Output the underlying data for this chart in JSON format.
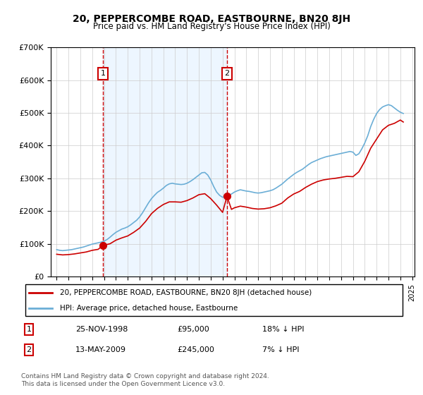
{
  "title": "20, PEPPERCOMBE ROAD, EASTBOURNE, BN20 8JH",
  "subtitle": "Price paid vs. HM Land Registry's House Price Index (HPI)",
  "hpi_label": "HPI: Average price, detached house, Eastbourne",
  "property_label": "20, PEPPERCOMBE ROAD, EASTBOURNE, BN20 8JH (detached house)",
  "sale1_date": "25-NOV-1998",
  "sale1_price": 95000,
  "sale1_pct": "18% ↓ HPI",
  "sale2_date": "13-MAY-2009",
  "sale2_price": 245000,
  "sale2_pct": "7% ↓ HPI",
  "sale1_year": 1998.9,
  "sale2_year": 2009.37,
  "hpi_color": "#6baed6",
  "property_color": "#cc0000",
  "marker_color": "#cc0000",
  "vline_color": "#cc0000",
  "shade_color": "#ddeeff",
  "ylim": [
    0,
    700000
  ],
  "yticks": [
    0,
    100000,
    200000,
    300000,
    400000,
    500000,
    600000,
    700000
  ],
  "footer": "Contains HM Land Registry data © Crown copyright and database right 2024.\nThis data is licensed under the Open Government Licence v3.0.",
  "hpi_data": {
    "years": [
      1995.0,
      1995.25,
      1995.5,
      1995.75,
      1996.0,
      1996.25,
      1996.5,
      1996.75,
      1997.0,
      1997.25,
      1997.5,
      1997.75,
      1998.0,
      1998.25,
      1998.5,
      1998.75,
      1999.0,
      1999.25,
      1999.5,
      1999.75,
      2000.0,
      2000.25,
      2000.5,
      2000.75,
      2001.0,
      2001.25,
      2001.5,
      2001.75,
      2002.0,
      2002.25,
      2002.5,
      2002.75,
      2003.0,
      2003.25,
      2003.5,
      2003.75,
      2004.0,
      2004.25,
      2004.5,
      2004.75,
      2005.0,
      2005.25,
      2005.5,
      2005.75,
      2006.0,
      2006.25,
      2006.5,
      2006.75,
      2007.0,
      2007.25,
      2007.5,
      2007.75,
      2008.0,
      2008.25,
      2008.5,
      2008.75,
      2009.0,
      2009.25,
      2009.5,
      2009.75,
      2010.0,
      2010.25,
      2010.5,
      2010.75,
      2011.0,
      2011.25,
      2011.5,
      2011.75,
      2012.0,
      2012.25,
      2012.5,
      2012.75,
      2013.0,
      2013.25,
      2013.5,
      2013.75,
      2014.0,
      2014.25,
      2014.5,
      2014.75,
      2015.0,
      2015.25,
      2015.5,
      2015.75,
      2016.0,
      2016.25,
      2016.5,
      2016.75,
      2017.0,
      2017.25,
      2017.5,
      2017.75,
      2018.0,
      2018.25,
      2018.5,
      2018.75,
      2019.0,
      2019.25,
      2019.5,
      2019.75,
      2020.0,
      2020.25,
      2020.5,
      2020.75,
      2021.0,
      2021.25,
      2021.5,
      2021.75,
      2022.0,
      2022.25,
      2022.5,
      2022.75,
      2023.0,
      2023.25,
      2023.5,
      2023.75,
      2024.0,
      2024.25
    ],
    "values": [
      82000,
      80000,
      79000,
      80000,
      81000,
      82000,
      84000,
      86000,
      88000,
      90000,
      93000,
      96000,
      99000,
      101000,
      103000,
      105000,
      108000,
      113000,
      120000,
      128000,
      135000,
      140000,
      145000,
      148000,
      152000,
      158000,
      165000,
      172000,
      182000,
      195000,
      210000,
      225000,
      238000,
      248000,
      257000,
      263000,
      270000,
      278000,
      283000,
      285000,
      283000,
      282000,
      281000,
      282000,
      285000,
      290000,
      296000,
      303000,
      310000,
      317000,
      318000,
      310000,
      295000,
      275000,
      258000,
      248000,
      242000,
      245000,
      248000,
      252000,
      258000,
      262000,
      265000,
      263000,
      261000,
      260000,
      258000,
      256000,
      255000,
      256000,
      258000,
      260000,
      262000,
      265000,
      270000,
      276000,
      282000,
      290000,
      298000,
      305000,
      312000,
      318000,
      323000,
      328000,
      335000,
      342000,
      348000,
      352000,
      356000,
      360000,
      363000,
      366000,
      368000,
      370000,
      372000,
      374000,
      376000,
      378000,
      380000,
      382000,
      380000,
      370000,
      375000,
      390000,
      408000,
      430000,
      458000,
      480000,
      498000,
      510000,
      518000,
      522000,
      525000,
      522000,
      515000,
      508000,
      502000,
      498000
    ]
  },
  "property_data": {
    "years": [
      1995.0,
      1995.5,
      1996.0,
      1996.5,
      1997.0,
      1997.5,
      1998.0,
      1998.5,
      1998.9,
      1999.5,
      2000.0,
      2000.5,
      2001.0,
      2001.5,
      2002.0,
      2002.5,
      2003.0,
      2003.5,
      2004.0,
      2004.5,
      2005.0,
      2005.5,
      2006.0,
      2006.5,
      2007.0,
      2007.5,
      2008.0,
      2008.5,
      2009.0,
      2009.37,
      2009.75,
      2010.0,
      2010.5,
      2011.0,
      2011.5,
      2012.0,
      2012.5,
      2013.0,
      2013.5,
      2014.0,
      2014.5,
      2015.0,
      2015.5,
      2016.0,
      2016.5,
      2017.0,
      2017.5,
      2018.0,
      2018.5,
      2019.0,
      2019.5,
      2020.0,
      2020.5,
      2021.0,
      2021.5,
      2022.0,
      2022.5,
      2023.0,
      2023.5,
      2024.0,
      2024.25
    ],
    "values": [
      68000,
      66000,
      67000,
      69000,
      72000,
      75000,
      80000,
      83000,
      95000,
      100000,
      111000,
      118000,
      124000,
      135000,
      148000,
      168000,
      192000,
      208000,
      220000,
      228000,
      228000,
      227000,
      232000,
      240000,
      250000,
      253000,
      238000,
      218000,
      196000,
      245000,
      205000,
      210000,
      215000,
      212000,
      208000,
      206000,
      207000,
      210000,
      216000,
      224000,
      240000,
      252000,
      260000,
      272000,
      282000,
      290000,
      295000,
      298000,
      300000,
      303000,
      306000,
      305000,
      320000,
      352000,
      392000,
      420000,
      448000,
      462000,
      468000,
      478000,
      472000
    ]
  }
}
